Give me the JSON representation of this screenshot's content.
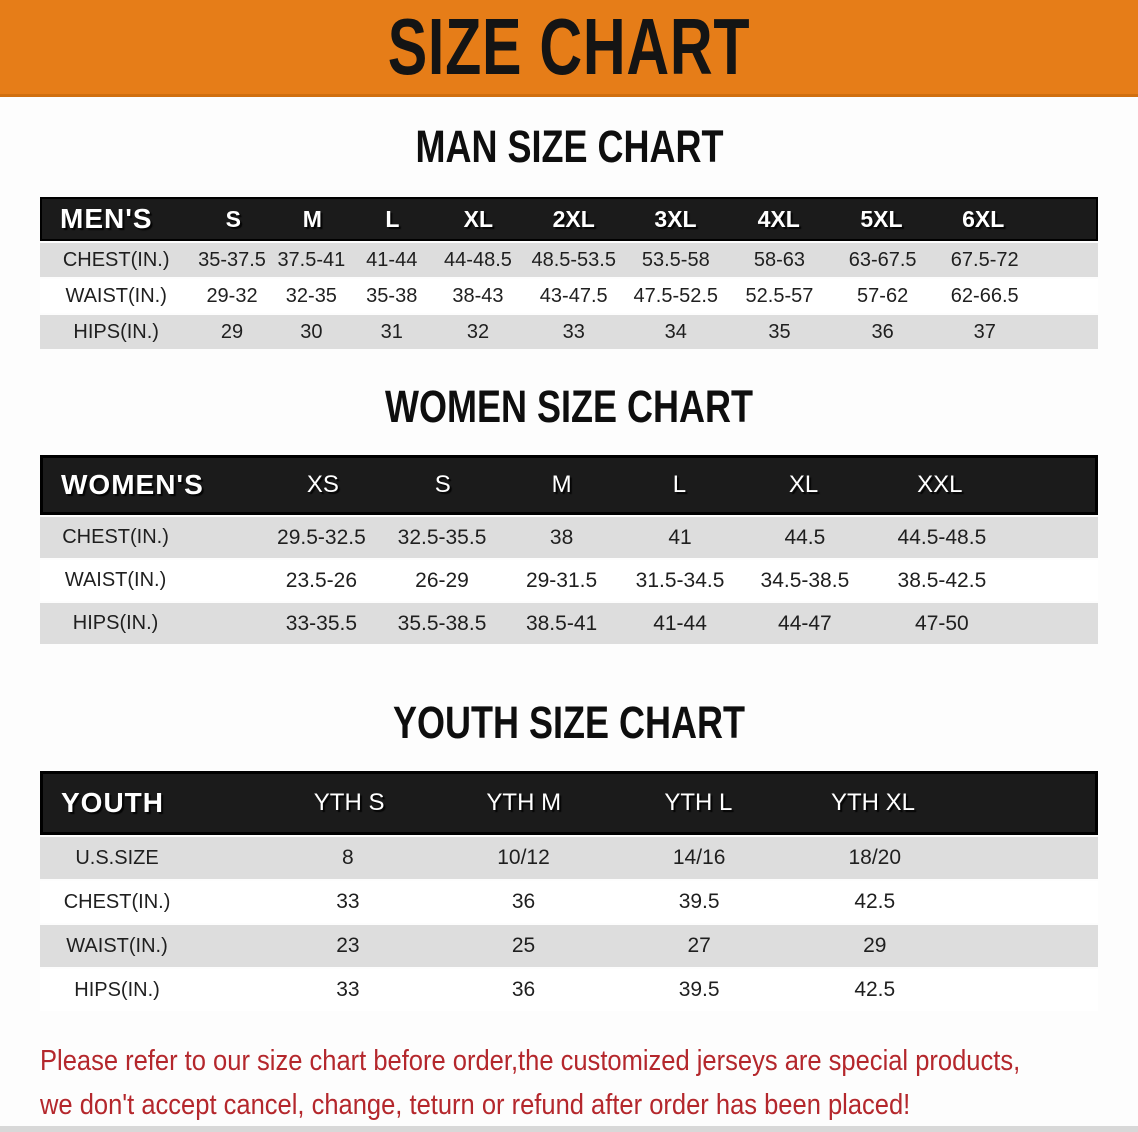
{
  "banner": {
    "title": "SIZE CHART"
  },
  "men": {
    "heading": "MAN SIZE CHART",
    "table": {
      "label": "MEN'S",
      "columns": [
        "S",
        "M",
        "L",
        "XL",
        "2XL",
        "3XL",
        "4XL",
        "5XL",
        "6XL"
      ],
      "rows": [
        {
          "label": "CHEST(IN.)",
          "values": [
            "35-37.5",
            "37.5-41",
            "41-44",
            "44-48.5",
            "48.5-53.5",
            "53.5-58",
            "58-63",
            "63-67.5",
            "67.5-72"
          ]
        },
        {
          "label": "WAIST(IN.)",
          "values": [
            "29-32",
            "32-35",
            "35-38",
            "38-43",
            "43-47.5",
            "47.5-52.5",
            "52.5-57",
            "57-62",
            "62-66.5"
          ]
        },
        {
          "label": "HIPS(IN.)",
          "values": [
            "29",
            "30",
            "31",
            "32",
            "33",
            "34",
            "35",
            "36",
            "37"
          ]
        }
      ]
    }
  },
  "women": {
    "heading": "WOMEN SIZE CHART",
    "table": {
      "label": "WOMEN'S",
      "columns": [
        "XS",
        "S",
        "M",
        "L",
        "XL",
        "XXL"
      ],
      "rows": [
        {
          "label": "CHEST(IN.)",
          "values": [
            "29.5-32.5",
            "32.5-35.5",
            "38",
            "41",
            "44.5",
            "44.5-48.5"
          ]
        },
        {
          "label": "WAIST(IN.)",
          "values": [
            "23.5-26",
            "26-29",
            "29-31.5",
            "31.5-34.5",
            "34.5-38.5",
            "38.5-42.5"
          ]
        },
        {
          "label": "HIPS(IN.)",
          "values": [
            "33-35.5",
            "35.5-38.5",
            "38.5-41",
            "41-44",
            "44-47",
            "47-50"
          ]
        }
      ]
    }
  },
  "youth": {
    "heading": "YOUTH SIZE CHART",
    "table": {
      "label": "YOUTH",
      "columns": [
        "YTH S",
        "YTH M",
        "YTH L",
        "YTH XL"
      ],
      "rows": [
        {
          "label": "U.S.SIZE",
          "values": [
            "8",
            "10/12",
            "14/16",
            "18/20"
          ]
        },
        {
          "label": "CHEST(IN.)",
          "values": [
            "33",
            "36",
            "39.5",
            "42.5"
          ]
        },
        {
          "label": "WAIST(IN.)",
          "values": [
            "23",
            "25",
            "27",
            "29"
          ]
        },
        {
          "label": "HIPS(IN.)",
          "values": [
            "33",
            "36",
            "39.5",
            "42.5"
          ]
        }
      ]
    }
  },
  "note": {
    "line1": "Please refer to our size chart before order,the customized jerseys are special products,",
    "line2": "we don't accept cancel, change, teturn or refund after order has been placed!"
  },
  "colors": {
    "banner_bg": "#E67D18",
    "table_header_bg": "#1B1B1B",
    "row_stripe": "#DDDDDD",
    "note_text": "#B4272C"
  }
}
